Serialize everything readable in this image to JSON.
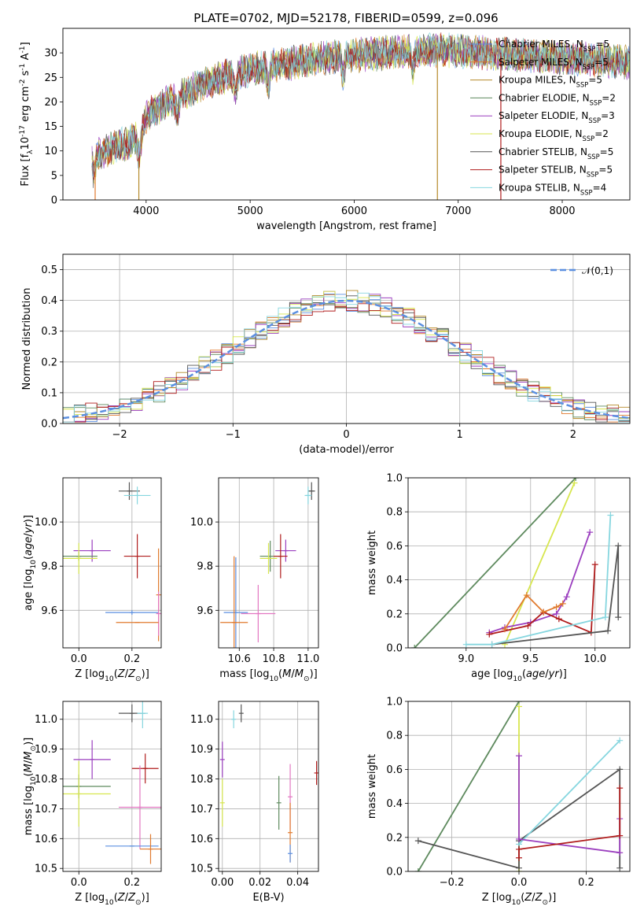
{
  "title": "PLATE=0702, MJD=52178, FIBERID=0599, z=0.096",
  "chart_data": [
    {
      "id": "spectrum",
      "type": "line",
      "xlabel": "wavelength [Angstrom, rest frame]",
      "ylabel": "Flux [f$_\\lambda$10$^{-17}$ erg cm$^{-2}$ s$^{-1}$ A$^{-1}$]",
      "xlim": [
        3200,
        8650
      ],
      "ylim": [
        0,
        35
      ],
      "xticks": [
        "4000",
        "5000",
        "6000",
        "7000",
        "8000"
      ],
      "yticks": [
        "0",
        "5",
        "10",
        "15",
        "20",
        "25",
        "30"
      ],
      "grid": false,
      "legend_position": "top-right",
      "series": [
        {
          "name": "Chabrier MILES, N$_{SSP}$=5",
          "color": "#5b8fe0"
        },
        {
          "name": "Salpeter MILES, N$_{SSP}$=5",
          "color": "#e07a2e"
        },
        {
          "name": "Kroupa MILES, N$_{SSP}$=5",
          "color": "#b58a2a"
        },
        {
          "name": "Chabrier ELODIE, N$_{SSP}$=2",
          "color": "#5e8a5e"
        },
        {
          "name": "Salpeter ELODIE, N$_{SSP}$=3",
          "color": "#9b3fbf"
        },
        {
          "name": "Kroupa ELODIE, N$_{SSP}$=2",
          "color": "#d7e64e"
        },
        {
          "name": "Chabrier STELIB, N$_{SSP}$=5",
          "color": "#555555"
        },
        {
          "name": "Salpeter STELIB, N$_{SSP}$=5",
          "color": "#b01c1c"
        },
        {
          "name": "Kroupa STELIB, N$_{SSP}$=4",
          "color": "#86d6df"
        }
      ],
      "continuum_x": [
        3480,
        3600,
        3800,
        3950,
        4000,
        4200,
        4500,
        4800,
        5100,
        5400,
        5700,
        6000,
        6300,
        6600,
        6900,
        7200,
        7600,
        8000,
        8400,
        8650
      ],
      "continuum_y": [
        9,
        10,
        11.5,
        13,
        17,
        20,
        23,
        25.5,
        27,
        28,
        29,
        29.5,
        30,
        30.5,
        30.5,
        30,
        29.5,
        29,
        28.5,
        28
      ],
      "absorption_dips_x": [
        3500,
        3935,
        4300,
        4860,
        5175,
        5895,
        6563
      ],
      "spikes_x": [
        3510,
        3930,
        6800,
        7410
      ]
    },
    {
      "id": "residuals",
      "type": "histogram",
      "xlabel": "(data-model)/error",
      "ylabel": "Normed distribution",
      "xlim": [
        -2.5,
        2.5
      ],
      "ylim": [
        0,
        0.55
      ],
      "xticks": [
        "−2",
        "−1",
        "0",
        "1",
        "2"
      ],
      "yticks": [
        "0.0",
        "0.1",
        "0.2",
        "0.3",
        "0.4",
        "0.5"
      ],
      "grid": true,
      "legend_position": "top-right",
      "legend_label": "$\\mathcal{N}(0,1)$",
      "reference_curve": {
        "mean": 0,
        "sigma": 1,
        "color": "#5b8fe0"
      },
      "series_colors": [
        "#5b8fe0",
        "#e07a2e",
        "#b58a2a",
        "#5e8a5e",
        "#9b3fbf",
        "#d7e64e",
        "#555555",
        "#b01c1c",
        "#86d6df"
      ]
    },
    {
      "id": "age_vs_Z",
      "type": "scatter",
      "xlabel": "Z [log$_{10}$($Z$/$Z_\\odot$)]",
      "ylabel": "age  [log$_{10}$($age$/$yr$)]",
      "xlim": [
        -0.06,
        0.31
      ],
      "ylim": [
        9.43,
        10.2
      ],
      "xticks": [
        "0.0",
        "0.2"
      ],
      "yticks": [
        "9.6",
        "9.8",
        "10.0"
      ],
      "grid": true,
      "points": [
        {
          "color": "#555555",
          "x": 0.19,
          "y": 10.14,
          "xerr": 0.04,
          "yerr": 0.04
        },
        {
          "color": "#86d6df",
          "x": 0.22,
          "y": 10.12,
          "xerr": 0.05,
          "yerr": 0.04
        },
        {
          "color": "#9b3fbf",
          "x": 0.05,
          "y": 9.87,
          "xerr": 0.07,
          "yerr": 0.05
        },
        {
          "color": "#5e8a5e",
          "x": 0.0,
          "y": 9.845,
          "xerr": 0.07,
          "yerr": 0.02
        },
        {
          "color": "#d7e64e",
          "x": 0.0,
          "y": 9.835,
          "xerr": 0.07,
          "yerr": 0.07
        },
        {
          "color": "#b01c1c",
          "x": 0.22,
          "y": 9.845,
          "xerr": 0.05,
          "yerr": 0.1
        },
        {
          "color": "#e07a2e",
          "x": 0.3,
          "y": 9.67,
          "xerr": 0.0,
          "yerr": 0.21
        },
        {
          "color": "#5b8fe0",
          "x": 0.2,
          "y": 9.59,
          "xerr": 0.1,
          "yerr": 0.01
        },
        {
          "color": "#e377c2",
          "x": 0.3,
          "y": 9.585,
          "xerr": 0.0,
          "yerr": 0.1
        },
        {
          "color": "#e07a2e",
          "x": 0.22,
          "y": 9.545,
          "xerr": 0.08,
          "yerr": 0.0
        }
      ]
    },
    {
      "id": "age_vs_mass",
      "type": "scatter",
      "xlabel": "mass [log$_{10}$($M$/$M_\\odot$)]",
      "ylabel": "",
      "xlim": [
        10.48,
        11.06
      ],
      "ylim": [
        9.43,
        10.2
      ],
      "xticks": [
        "10.6",
        "10.8",
        "11.0"
      ],
      "yticks": [
        "9.6",
        "9.8",
        "10.0"
      ],
      "grid": true,
      "points": [
        {
          "color": "#555555",
          "x": 11.02,
          "y": 10.14,
          "xerr": 0.02,
          "yerr": 0.04
        },
        {
          "color": "#86d6df",
          "x": 11.0,
          "y": 10.12,
          "xerr": 0.02,
          "yerr": 0.04
        },
        {
          "color": "#9b3fbf",
          "x": 10.87,
          "y": 9.87,
          "xerr": 0.06,
          "yerr": 0.05
        },
        {
          "color": "#5e8a5e",
          "x": 10.78,
          "y": 9.845,
          "xerr": 0.06,
          "yerr": 0.07
        },
        {
          "color": "#d7e64e",
          "x": 10.77,
          "y": 9.835,
          "xerr": 0.05,
          "yerr": 0.07
        },
        {
          "color": "#b01c1c",
          "x": 10.84,
          "y": 9.845,
          "xerr": 0.04,
          "yerr": 0.1
        },
        {
          "color": "#e377c2",
          "x": 10.71,
          "y": 9.585,
          "xerr": 0.1,
          "yerr": 0.13
        },
        {
          "color": "#5b8fe0",
          "x": 10.58,
          "y": 9.59,
          "xerr": 0.07,
          "yerr": 0.25
        },
        {
          "color": "#e07a2e",
          "x": 10.57,
          "y": 9.545,
          "xerr": 0.08,
          "yerr": 0.3
        }
      ]
    },
    {
      "id": "massweight_vs_age",
      "type": "line",
      "xlabel": "age  [log$_{10}$($age$/$yr$)]",
      "ylabel": "mass weight",
      "xlim": [
        8.55,
        10.27
      ],
      "ylim": [
        0,
        1
      ],
      "xticks": [
        "9.0",
        "9.5",
        "10.0"
      ],
      "yticks": [
        "0.0",
        "0.2",
        "0.4",
        "0.6",
        "0.8",
        "1.0"
      ],
      "grid": true,
      "series": [
        {
          "color": "#5e8a5e",
          "x": [
            8.6,
            9.85
          ],
          "y": [
            0.0,
            1.0
          ]
        },
        {
          "color": "#d7e64e",
          "x": [
            9.3,
            9.84
          ],
          "y": [
            0.02,
            0.97
          ]
        },
        {
          "color": "#9b3fbf",
          "x": [
            9.18,
            9.3,
            9.5,
            9.7,
            9.78,
            9.96
          ],
          "y": [
            0.09,
            0.12,
            0.15,
            0.2,
            0.3,
            0.68
          ]
        },
        {
          "color": "#b01c1c",
          "x": [
            9.18,
            9.48,
            9.6,
            9.72,
            9.97,
            10.0
          ],
          "y": [
            0.08,
            0.13,
            0.21,
            0.17,
            0.09,
            0.49
          ]
        },
        {
          "color": "#e07a2e",
          "x": [
            9.3,
            9.47,
            9.6,
            9.7,
            9.75
          ],
          "y": [
            0.11,
            0.31,
            0.21,
            0.24,
            0.26
          ]
        },
        {
          "color": "#555555",
          "x": [
            9.2,
            10.1,
            10.18,
            10.18
          ],
          "y": [
            0.02,
            0.1,
            0.6,
            0.18
          ]
        },
        {
          "color": "#86d6df",
          "x": [
            9.0,
            9.2,
            10.08,
            10.12
          ],
          "y": [
            0.02,
            0.02,
            0.18,
            0.78
          ]
        }
      ]
    },
    {
      "id": "mass_vs_Z",
      "type": "scatter",
      "xlabel": "Z [log$_{10}$($Z$/$Z_\\odot$)]",
      "ylabel": "mass [log$_{10}$($M$/$M_\\odot$)]",
      "xlim": [
        -0.06,
        0.31
      ],
      "ylim": [
        10.49,
        11.06
      ],
      "xticks": [
        "0.0",
        "0.2"
      ],
      "yticks": [
        "10.5",
        "10.6",
        "10.7",
        "10.8",
        "10.9",
        "11.0"
      ],
      "grid": true,
      "points": [
        {
          "color": "#555555",
          "x": 0.2,
          "y": 11.02,
          "xerr": 0.05,
          "yerr": 0.03
        },
        {
          "color": "#86d6df",
          "x": 0.24,
          "y": 11.02,
          "xerr": 0.02,
          "yerr": 0.05
        },
        {
          "color": "#9b3fbf",
          "x": 0.05,
          "y": 10.865,
          "xerr": 0.07,
          "yerr": 0.065
        },
        {
          "color": "#b01c1c",
          "x": 0.25,
          "y": 10.835,
          "xerr": 0.05,
          "yerr": 0.05
        },
        {
          "color": "#5e8a5e",
          "x": 0.0,
          "y": 10.775,
          "xerr": 0.12,
          "yerr": 0.04
        },
        {
          "color": "#d7e64e",
          "x": 0.0,
          "y": 10.75,
          "xerr": 0.12,
          "yerr": 0.11
        },
        {
          "color": "#e377c2",
          "x": 0.23,
          "y": 10.705,
          "xerr": 0.08,
          "yerr": 0.14
        },
        {
          "color": "#5b8fe0",
          "x": 0.2,
          "y": 10.575,
          "xerr": 0.1,
          "yerr": 0.0
        },
        {
          "color": "#e07a2e",
          "x": 0.27,
          "y": 10.565,
          "xerr": 0.04,
          "yerr": 0.05
        }
      ]
    },
    {
      "id": "mass_vs_ebv",
      "type": "scatter",
      "xlabel": "E(B-V)",
      "ylabel": "",
      "xlim": [
        -0.002,
        0.051
      ],
      "ylim": [
        10.49,
        11.06
      ],
      "xticks": [
        "0.00",
        "0.02",
        "0.04"
      ],
      "yticks": [
        "10.5",
        "10.6",
        "10.7",
        "10.8",
        "10.9",
        "11.0"
      ],
      "grid": true,
      "points": [
        {
          "color": "#555555",
          "x": 0.01,
          "y": 11.02,
          "xerr": 0.0,
          "yerr": 0.03
        },
        {
          "color": "#86d6df",
          "x": 0.006,
          "y": 11.0,
          "xerr": 0.0,
          "yerr": 0.03
        },
        {
          "color": "#9b3fbf",
          "x": 0.0,
          "y": 10.865,
          "xerr": 0.0,
          "yerr": 0.06
        },
        {
          "color": "#d7e64e",
          "x": 0.0,
          "y": 10.72,
          "xerr": 0.0,
          "yerr": 0.08
        },
        {
          "color": "#5e8a5e",
          "x": 0.03,
          "y": 10.72,
          "xerr": 0.0,
          "yerr": 0.09
        },
        {
          "color": "#e377c2",
          "x": 0.036,
          "y": 10.74,
          "xerr": 0.0,
          "yerr": 0.11
        },
        {
          "color": "#e07a2e",
          "x": 0.036,
          "y": 10.62,
          "xerr": 0.0,
          "yerr": 0.1
        },
        {
          "color": "#5b8fe0",
          "x": 0.036,
          "y": 10.55,
          "xerr": 0.0,
          "yerr": 0.03
        },
        {
          "color": "#b01c1c",
          "x": 0.05,
          "y": 10.82,
          "xerr": 0.0,
          "yerr": 0.04
        }
      ]
    },
    {
      "id": "massweight_vs_Z",
      "type": "line",
      "xlabel": "Z [log$_{10}$($Z$/$Z_\\odot$)]",
      "ylabel": "mass weight",
      "xlim": [
        -0.33,
        0.33
      ],
      "ylim": [
        0,
        1
      ],
      "xticks": [
        "−0.2",
        "0.0",
        "0.2"
      ],
      "yticks": [
        "0.0",
        "0.2",
        "0.4",
        "0.6",
        "0.8",
        "1.0"
      ],
      "grid": true,
      "series": [
        {
          "color": "#5e8a5e",
          "x": [
            -0.3,
            0.0
          ],
          "y": [
            0.0,
            1.0
          ]
        },
        {
          "color": "#d7e64e",
          "x": [
            0.0,
            0.0
          ],
          "y": [
            0.0,
            0.97
          ]
        },
        {
          "color": "#555555",
          "x": [
            -0.3,
            0.0,
            0.0,
            0.3,
            0.3
          ],
          "y": [
            0.18,
            0.02,
            0.18,
            0.6,
            0.02
          ]
        },
        {
          "color": "#86d6df",
          "x": [
            0.0,
            0.3
          ],
          "y": [
            0.16,
            0.77
          ]
        },
        {
          "color": "#9b3fbf",
          "x": [
            0.0,
            0.0,
            0.3,
            0.3
          ],
          "y": [
            0.68,
            0.19,
            0.11,
            0.31
          ]
        },
        {
          "color": "#b01c1c",
          "x": [
            0.0,
            0.0,
            0.3,
            0.3
          ],
          "y": [
            0.08,
            0.13,
            0.21,
            0.49
          ]
        }
      ]
    }
  ]
}
